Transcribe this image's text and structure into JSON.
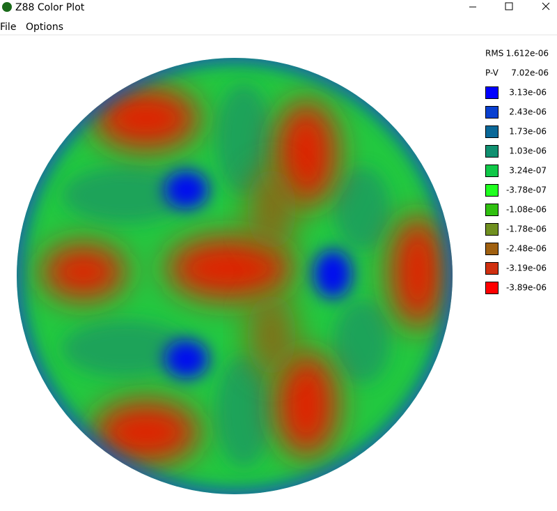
{
  "window": {
    "title": "Z88 Color Plot"
  },
  "menu": [
    "File",
    "Options"
  ],
  "stats": [
    {
      "label": "RMS",
      "value": "1.612e-06"
    },
    {
      "label": "P-V",
      "value": "7.02e-06"
    }
  ],
  "legend": [
    {
      "label": "3.13e-06",
      "color": "#0000ff"
    },
    {
      "label": "2.43e-06",
      "color": "#0a40d0"
    },
    {
      "label": "1.73e-06",
      "color": "#0a6898"
    },
    {
      "label": "1.03e-06",
      "color": "#109070"
    },
    {
      "label": "3.24e-07",
      "color": "#10c848"
    },
    {
      "label": "-3.78e-07",
      "color": "#20ff20"
    },
    {
      "label": "-1.08e-06",
      "color": "#30c010"
    },
    {
      "label": "-1.78e-06",
      "color": "#709020"
    },
    {
      "label": "-2.48e-06",
      "color": "#a06010"
    },
    {
      "label": "-3.19e-06",
      "color": "#d03010"
    },
    {
      "label": "-3.89e-06",
      "color": "#ff0000"
    }
  ]
}
